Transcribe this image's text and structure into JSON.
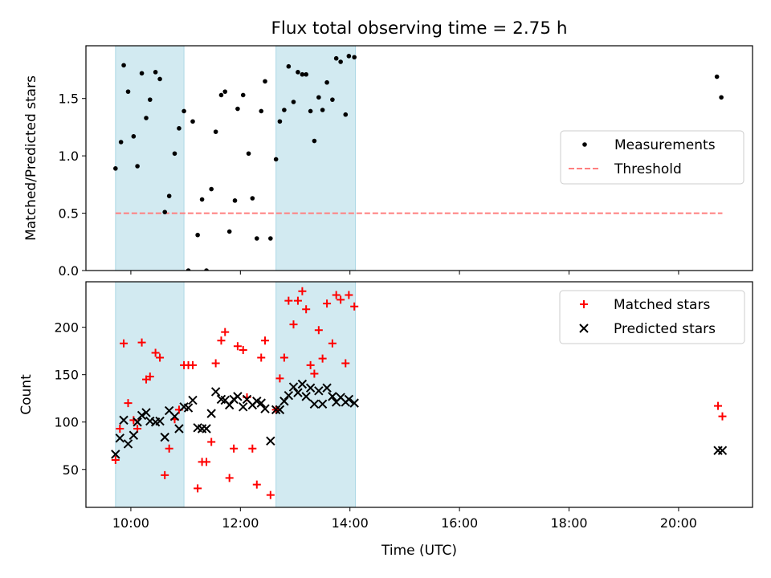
{
  "title": "Flux total observing time = 2.75 h",
  "xlabel": "Time (UTC)",
  "xticks": [
    {
      "t": 10,
      "label": "10:00"
    },
    {
      "t": 12,
      "label": "12:00"
    },
    {
      "t": 14,
      "label": "14:00"
    },
    {
      "t": 16,
      "label": "16:00"
    },
    {
      "t": 18,
      "label": "18:00"
    },
    {
      "t": 20,
      "label": "20:00"
    }
  ],
  "colors": {
    "band": "#add8e6",
    "threshold": "#ff7f7f",
    "matched": "#ff0000",
    "predicted": "#000000",
    "measurement": "#000000"
  },
  "chart_data": [
    {
      "type": "scatter",
      "panel": "top",
      "ylabel": "Matched/Predicted stars",
      "xlim": [
        9.18,
        21.35
      ],
      "ylim": [
        0,
        1.96
      ],
      "yticks": [
        0.0,
        0.5,
        1.0,
        1.5
      ],
      "legend": {
        "position": "center-right",
        "entries": [
          "Measurements",
          "Threshold"
        ]
      },
      "shaded_intervals": [
        [
          9.72,
          10.97
        ],
        [
          12.65,
          14.1
        ]
      ],
      "threshold": {
        "name": "Threshold",
        "value": 0.5,
        "x_range": [
          9.72,
          20.8
        ],
        "style": "dashed"
      },
      "series": [
        {
          "name": "Measurements",
          "marker": "dot",
          "points": [
            [
              9.72,
              0.89
            ],
            [
              9.82,
              1.12
            ],
            [
              9.87,
              1.79
            ],
            [
              9.95,
              1.56
            ],
            [
              10.05,
              1.17
            ],
            [
              10.12,
              0.91
            ],
            [
              10.2,
              1.72
            ],
            [
              10.28,
              1.33
            ],
            [
              10.35,
              1.49
            ],
            [
              10.45,
              1.73
            ],
            [
              10.53,
              1.67
            ],
            [
              10.62,
              0.51
            ],
            [
              10.7,
              0.65
            ],
            [
              10.8,
              1.02
            ],
            [
              10.88,
              1.24
            ],
            [
              10.97,
              1.39
            ],
            [
              11.05,
              0.0
            ],
            [
              11.13,
              1.3
            ],
            [
              11.22,
              0.31
            ],
            [
              11.3,
              0.62
            ],
            [
              11.38,
              0.0
            ],
            [
              11.47,
              0.71
            ],
            [
              11.55,
              1.21
            ],
            [
              11.65,
              1.53
            ],
            [
              11.72,
              1.56
            ],
            [
              11.8,
              0.34
            ],
            [
              11.9,
              0.61
            ],
            [
              11.95,
              1.41
            ],
            [
              12.05,
              1.53
            ],
            [
              12.15,
              1.02
            ],
            [
              12.22,
              0.63
            ],
            [
              12.3,
              0.28
            ],
            [
              12.38,
              1.39
            ],
            [
              12.45,
              1.65
            ],
            [
              12.55,
              0.28
            ],
            [
              12.65,
              0.97
            ],
            [
              12.72,
              1.3
            ],
            [
              12.8,
              1.4
            ],
            [
              12.88,
              1.78
            ],
            [
              12.97,
              1.47
            ],
            [
              13.05,
              1.73
            ],
            [
              13.13,
              1.71
            ],
            [
              13.2,
              1.71
            ],
            [
              13.28,
              1.39
            ],
            [
              13.35,
              1.13
            ],
            [
              13.43,
              1.51
            ],
            [
              13.5,
              1.4
            ],
            [
              13.58,
              1.64
            ],
            [
              13.68,
              1.49
            ],
            [
              13.75,
              1.85
            ],
            [
              13.83,
              1.82
            ],
            [
              13.92,
              1.36
            ],
            [
              13.98,
              1.87
            ],
            [
              14.08,
              1.86
            ],
            [
              20.7,
              1.69
            ],
            [
              20.78,
              1.51
            ]
          ]
        }
      ]
    },
    {
      "type": "scatter",
      "panel": "bottom",
      "ylabel": "Count",
      "xlabel": "Time (UTC)",
      "xlim": [
        9.18,
        21.35
      ],
      "ylim": [
        10,
        248
      ],
      "yticks": [
        50,
        100,
        150,
        200
      ],
      "legend": {
        "position": "top-right",
        "entries": [
          "Matched stars",
          "Predicted stars"
        ]
      },
      "shaded_intervals": [
        [
          9.72,
          10.97
        ],
        [
          12.65,
          14.1
        ]
      ],
      "series": [
        {
          "name": "Matched stars",
          "marker": "plus",
          "points": [
            [
              9.72,
              60
            ],
            [
              9.8,
              93
            ],
            [
              9.87,
              183
            ],
            [
              9.95,
              120
            ],
            [
              10.05,
              102
            ],
            [
              10.12,
              93
            ],
            [
              10.2,
              184
            ],
            [
              10.28,
              145
            ],
            [
              10.35,
              148
            ],
            [
              10.45,
              173
            ],
            [
              10.53,
              168
            ],
            [
              10.62,
              44
            ],
            [
              10.7,
              72
            ],
            [
              10.8,
              103
            ],
            [
              10.88,
              113
            ],
            [
              10.97,
              160
            ],
            [
              11.05,
              160
            ],
            [
              11.13,
              160
            ],
            [
              11.22,
              30
            ],
            [
              11.3,
              58
            ],
            [
              11.38,
              58
            ],
            [
              11.47,
              79
            ],
            [
              11.55,
              162
            ],
            [
              11.65,
              186
            ],
            [
              11.72,
              195
            ],
            [
              11.8,
              41
            ],
            [
              11.88,
              72
            ],
            [
              11.95,
              180
            ],
            [
              12.05,
              176
            ],
            [
              12.12,
              126
            ],
            [
              12.22,
              72
            ],
            [
              12.3,
              34
            ],
            [
              12.38,
              168
            ],
            [
              12.45,
              186
            ],
            [
              12.55,
              23
            ],
            [
              12.65,
              113
            ],
            [
              12.72,
              146
            ],
            [
              12.8,
              168
            ],
            [
              12.88,
              228
            ],
            [
              12.97,
              203
            ],
            [
              13.05,
              228
            ],
            [
              13.13,
              238
            ],
            [
              13.2,
              219
            ],
            [
              13.28,
              160
            ],
            [
              13.35,
              151
            ],
            [
              13.43,
              197
            ],
            [
              13.5,
              167
            ],
            [
              13.58,
              225
            ],
            [
              13.68,
              183
            ],
            [
              13.75,
              234
            ],
            [
              13.83,
              229
            ],
            [
              13.92,
              162
            ],
            [
              13.98,
              234
            ],
            [
              14.08,
              222
            ],
            [
              20.72,
              117
            ],
            [
              20.8,
              106
            ]
          ]
        },
        {
          "name": "Predicted stars",
          "marker": "x",
          "points": [
            [
              9.72,
              66
            ],
            [
              9.8,
              83
            ],
            [
              9.87,
              102
            ],
            [
              9.95,
              77
            ],
            [
              10.05,
              86
            ],
            [
              10.12,
              100
            ],
            [
              10.2,
              107
            ],
            [
              10.28,
              110
            ],
            [
              10.35,
              101
            ],
            [
              10.45,
              100
            ],
            [
              10.53,
              101
            ],
            [
              10.62,
              84
            ],
            [
              10.7,
              112
            ],
            [
              10.8,
              106
            ],
            [
              10.88,
              93
            ],
            [
              10.97,
              116
            ],
            [
              11.05,
              115
            ],
            [
              11.13,
              123
            ],
            [
              11.22,
              94
            ],
            [
              11.3,
              93
            ],
            [
              11.38,
              93
            ],
            [
              11.47,
              109
            ],
            [
              11.55,
              132
            ],
            [
              11.65,
              124
            ],
            [
              11.72,
              123
            ],
            [
              11.8,
              118
            ],
            [
              11.88,
              124
            ],
            [
              11.95,
              127
            ],
            [
              12.05,
              116
            ],
            [
              12.12,
              124
            ],
            [
              12.22,
              118
            ],
            [
              12.3,
              122
            ],
            [
              12.38,
              120
            ],
            [
              12.45,
              114
            ],
            [
              12.55,
              80
            ],
            [
              12.65,
              113
            ],
            [
              12.72,
              113
            ],
            [
              12.8,
              122
            ],
            [
              12.88,
              128
            ],
            [
              12.97,
              137
            ],
            [
              13.05,
              131
            ],
            [
              13.13,
              140
            ],
            [
              13.2,
              127
            ],
            [
              13.28,
              136
            ],
            [
              13.35,
              119
            ],
            [
              13.43,
              133
            ],
            [
              13.5,
              119
            ],
            [
              13.58,
              136
            ],
            [
              13.68,
              127
            ],
            [
              13.75,
              121
            ],
            [
              13.83,
              126
            ],
            [
              13.92,
              121
            ],
            [
              13.98,
              124
            ],
            [
              14.08,
              120
            ],
            [
              20.72,
              70
            ],
            [
              20.8,
              70
            ]
          ]
        }
      ]
    }
  ]
}
